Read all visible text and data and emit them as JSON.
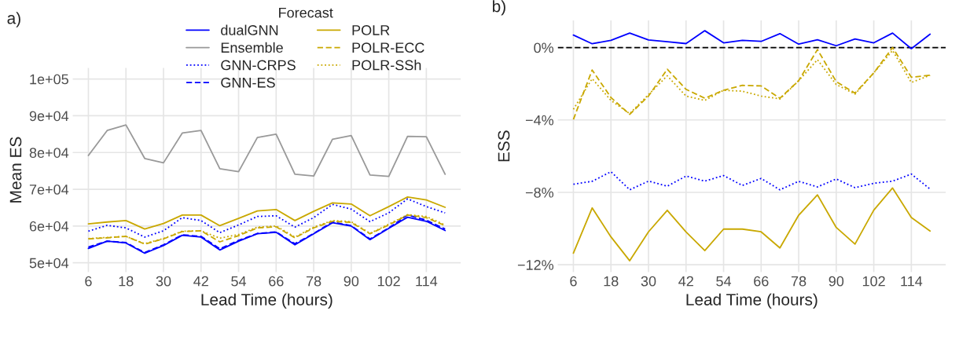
{
  "chart_data": [
    {
      "type": "line",
      "annotations": [
        "a)"
      ],
      "xlabel": "Lead Time (hours)",
      "ylabel": "Mean ES",
      "legend_title": "Forecast",
      "legend": "top",
      "x": [
        6,
        12,
        18,
        24,
        30,
        36,
        42,
        48,
        54,
        60,
        66,
        72,
        78,
        84,
        90,
        96,
        102,
        108,
        114,
        120
      ],
      "xlim": [
        1,
        125
      ],
      "xticks": [
        6,
        18,
        30,
        42,
        54,
        66,
        78,
        90,
        102,
        114
      ],
      "ylim": [
        47500,
        103000
      ],
      "yticks": [
        {
          "value": 50000,
          "label": "5e+04"
        },
        {
          "value": 60000,
          "label": "6e+04"
        },
        {
          "value": 70000,
          "label": "7e+04"
        },
        {
          "value": 80000,
          "label": "8e+04"
        },
        {
          "value": 90000,
          "label": "9e+04"
        },
        {
          "value": 100000,
          "label": "1e+05"
        }
      ],
      "grid": true,
      "series": [
        {
          "name": "dualGNN",
          "color": "#0000ff",
          "line_style": "solid",
          "values": [
            53900,
            55900,
            55400,
            52600,
            54700,
            57500,
            57000,
            53500,
            55900,
            57900,
            58300,
            54900,
            57900,
            60900,
            60000,
            56300,
            59400,
            62400,
            61300,
            58800
          ]
        },
        {
          "name": "Ensemble",
          "color": "#999999",
          "line_style": "solid",
          "values": [
            79200,
            86000,
            87500,
            78400,
            77200,
            85300,
            86000,
            75600,
            74800,
            84100,
            85000,
            74100,
            73600,
            83600,
            84600,
            73900,
            73500,
            84400,
            84300,
            74100
          ]
        },
        {
          "name": "GNN-CRPS",
          "color": "#0000ff",
          "line_style": "dotted",
          "values": [
            58600,
            60200,
            59500,
            57000,
            58700,
            62300,
            61500,
            58200,
            60300,
            62600,
            62800,
            59700,
            62300,
            65900,
            64600,
            61200,
            63600,
            67400,
            65300,
            63600
          ]
        },
        {
          "name": "GNN-ES",
          "color": "#0000ff",
          "line_style": "dashed",
          "values": [
            54300,
            55900,
            55500,
            52800,
            54900,
            57600,
            57200,
            53800,
            56100,
            58000,
            58400,
            55200,
            58000,
            61100,
            60100,
            56500,
            59500,
            63000,
            61600,
            59200
          ]
        },
        {
          "name": "POLR",
          "color": "#c9a800",
          "line_style": "solid",
          "values": [
            60600,
            61100,
            61500,
            59200,
            60700,
            63000,
            63000,
            60100,
            62100,
            64100,
            64500,
            61500,
            64000,
            66300,
            66000,
            62800,
            65300,
            67900,
            67100,
            65100
          ]
        },
        {
          "name": "POLR-ECC",
          "color": "#c9a800",
          "line_style": "dashed",
          "values": [
            56500,
            56800,
            57200,
            55100,
            56500,
            58500,
            58700,
            55700,
            57400,
            59500,
            59800,
            56800,
            59500,
            61300,
            61000,
            57900,
            60300,
            63000,
            62300,
            60100
          ]
        },
        {
          "name": "POLR-SSh",
          "color": "#c9a800",
          "line_style": "dotted",
          "values": [
            56600,
            56900,
            57200,
            55200,
            56600,
            58600,
            58700,
            56700,
            57700,
            59700,
            60000,
            57000,
            59700,
            61500,
            61200,
            58000,
            60500,
            63100,
            62600,
            60300
          ]
        }
      ]
    },
    {
      "type": "line",
      "annotations": [
        "b)"
      ],
      "xlabel": "Lead Time (hours)",
      "ylabel": "ESS",
      "x": [
        6,
        12,
        18,
        24,
        30,
        36,
        42,
        48,
        54,
        60,
        66,
        72,
        78,
        84,
        90,
        96,
        102,
        108,
        114,
        120
      ],
      "xlim": [
        1,
        125
      ],
      "xticks": [
        6,
        18,
        30,
        42,
        54,
        66,
        78,
        90,
        102,
        114
      ],
      "ylim": [
        -12.4,
        1.5
      ],
      "yticks": [
        {
          "value": -12,
          "label": "−12%"
        },
        {
          "value": -8,
          "label": "−8%"
        },
        {
          "value": -4,
          "label": "−4%"
        },
        {
          "value": 0,
          "label": "0%"
        }
      ],
      "grid": true,
      "ref_lines": [
        {
          "axis": "y",
          "value": 0,
          "color": "#000000",
          "line_style": "dashed"
        }
      ],
      "series": [
        {
          "color": "#0000ff",
          "line_style": "solid",
          "values": [
            0.69,
            0.21,
            0.4,
            0.8,
            0.42,
            0.32,
            0.22,
            0.93,
            0.26,
            0.4,
            0.34,
            0.77,
            0.19,
            0.43,
            0.1,
            0.47,
            0.26,
            0.8,
            -0.06,
            0.74
          ]
        },
        {
          "color": "#0000ff",
          "line_style": "dotted",
          "values": [
            -7.55,
            -7.39,
            -6.86,
            -7.86,
            -7.38,
            -7.66,
            -7.1,
            -7.38,
            -7.07,
            -7.62,
            -7.23,
            -7.86,
            -7.39,
            -7.7,
            -7.26,
            -7.74,
            -7.5,
            -7.38,
            -6.99,
            -7.82
          ]
        },
        {
          "color": "#c9a800",
          "line_style": "solid",
          "values": [
            -11.36,
            -8.86,
            -10.46,
            -11.78,
            -10.18,
            -8.99,
            -10.19,
            -11.22,
            -10.03,
            -10.03,
            -10.18,
            -11.07,
            -9.26,
            -8.14,
            -9.94,
            -10.86,
            -8.98,
            -7.76,
            -9.39,
            -10.14
          ]
        },
        {
          "color": "#c9a800",
          "line_style": "dashed",
          "values": [
            -3.97,
            -1.24,
            -2.76,
            -3.69,
            -2.68,
            -1.2,
            -2.31,
            -2.8,
            -2.36,
            -2.09,
            -2.12,
            -2.8,
            -1.83,
            -0.11,
            -1.88,
            -2.52,
            -1.4,
            0.0,
            -1.64,
            -1.53
          ]
        },
        {
          "color": "#c9a800",
          "line_style": "dotted",
          "values": [
            -3.41,
            -1.72,
            -2.92,
            -3.65,
            -2.6,
            -1.56,
            -2.68,
            -2.92,
            -2.36,
            -2.41,
            -2.68,
            -2.84,
            -1.83,
            -0.67,
            -2.04,
            -2.57,
            -1.4,
            -0.16,
            -1.93,
            -1.53
          ]
        }
      ]
    }
  ]
}
